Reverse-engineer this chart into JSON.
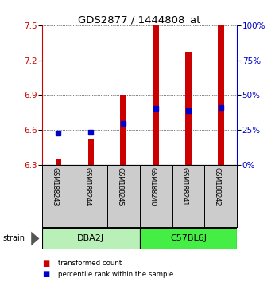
{
  "title": "GDS2877 / 1444808_at",
  "samples": [
    "GSM188243",
    "GSM188244",
    "GSM188245",
    "GSM188240",
    "GSM188241",
    "GSM188242"
  ],
  "group_dba_color": "#b8f0b8",
  "group_c57_color": "#44ee44",
  "red_values": [
    6.355,
    6.52,
    6.9,
    7.5,
    7.27,
    7.5
  ],
  "blue_values": [
    6.575,
    6.58,
    6.655,
    6.79,
    6.765,
    6.795
  ],
  "y_min": 6.3,
  "y_max": 7.5,
  "y_ticks_left": [
    6.3,
    6.6,
    6.9,
    7.2,
    7.5
  ],
  "y_ticks_right": [
    0,
    25,
    50,
    75,
    100
  ],
  "red_color": "#cc0000",
  "blue_color": "#0000cc",
  "bar_width": 0.18,
  "sample_area_color": "#cccccc",
  "bg_color": "#ffffff",
  "legend_items": [
    {
      "color": "#cc0000",
      "label": "transformed count"
    },
    {
      "color": "#0000cc",
      "label": "percentile rank within the sample"
    }
  ]
}
